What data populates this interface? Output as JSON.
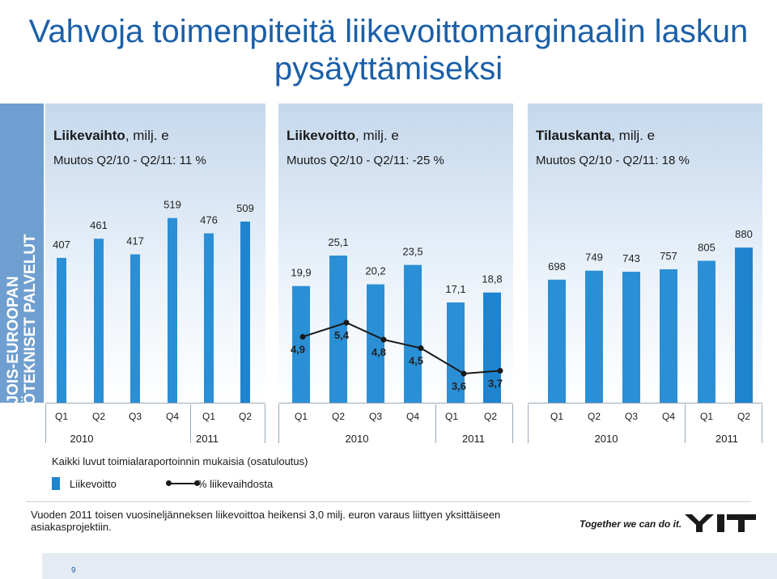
{
  "title": "Vahvoja toimenpiteitä liikevoittomarginaalin laskun pysäyttämiseksi",
  "side_label": "POHJOIS-EUROOPAN KIINTEISTÖTEKNISET PALVELUT",
  "note": "Kaikki luvut toimialaraportoinnin mukaisia (osatuloutus)",
  "legend": {
    "bars": "Liikevoitto",
    "line": "% liikevaihdosta"
  },
  "footer": "Vuoden 2011 toisen vuosineljänneksen liikevoittoa heikensi 3,0 milj. euron varaus liittyen yksittäiseen asiakasprojektiin.",
  "slogan": "Together we can do it.",
  "logo_text": "YIT",
  "page_number": "9",
  "colors": {
    "bar": "#1f84d0",
    "title": "#1b5fa8",
    "side_banner": "#6f9fd0"
  },
  "chart_data": [
    {
      "type": "bar",
      "title": "Liikevaihto",
      "title_suffix": ", milj. e",
      "subtitle": "Muutos Q2/10 - Q2/11: 11 %",
      "categories": [
        "Q1",
        "Q2",
        "Q3",
        "Q4",
        "Q1",
        "Q2"
      ],
      "years": [
        "2010",
        "2011"
      ],
      "values": [
        407,
        461,
        417,
        519,
        476,
        509
      ],
      "labels": [
        "407",
        "461",
        "417",
        "519",
        "476",
        "509"
      ]
    },
    {
      "type": "bar",
      "title": "Liikevoitto",
      "title_suffix": ", milj. e",
      "subtitle": "Muutos Q2/10 - Q2/11: -25 %",
      "categories": [
        "Q1",
        "Q2",
        "Q3",
        "Q4",
        "Q1",
        "Q2"
      ],
      "years": [
        "2010",
        "2011"
      ],
      "values": [
        19.9,
        25.1,
        20.2,
        23.5,
        17.1,
        18.8
      ],
      "labels": [
        "19,9",
        "25,1",
        "20,2",
        "23,5",
        "17,1",
        "18,8"
      ],
      "line_series": {
        "values": [
          4.9,
          5.4,
          4.8,
          4.5,
          3.6,
          3.7
        ],
        "labels": [
          "4,9",
          "5,4",
          "4,8",
          "4,5",
          "3,6",
          "3,7"
        ]
      }
    },
    {
      "type": "bar",
      "title": "Tilauskanta",
      "title_suffix": ", milj. e",
      "subtitle": "Muutos Q2/10 - Q2/11: 18 %",
      "categories": [
        "Q1",
        "Q2",
        "Q3",
        "Q4",
        "Q1",
        "Q2"
      ],
      "years": [
        "2010",
        "2011"
      ],
      "values": [
        698,
        749,
        743,
        757,
        805,
        880
      ],
      "labels": [
        "698",
        "749",
        "743",
        "757",
        "805",
        "880"
      ]
    }
  ]
}
